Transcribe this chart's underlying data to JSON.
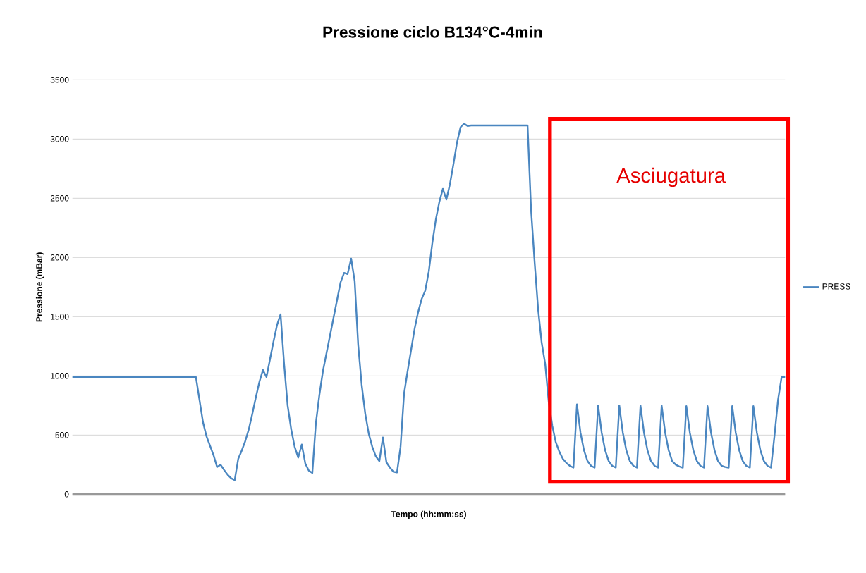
{
  "chart_data": {
    "type": "line",
    "title": "Pressione ciclo B134°C-4min",
    "xlabel": "Tempo (hh:mm:ss)",
    "ylabel": "Pressione (mBar)",
    "categories": [
      null,
      null,
      null,
      null,
      null,
      null,
      null,
      null,
      null,
      null,
      null,
      null,
      null,
      null,
      null,
      null,
      null,
      null,
      null,
      null,
      null,
      null,
      null,
      null,
      null,
      null,
      null,
      null,
      null,
      null,
      null,
      null,
      null,
      null,
      null,
      null,
      null,
      null,
      null,
      null,
      null,
      null,
      null,
      null,
      null,
      null,
      null,
      null,
      null,
      null,
      null,
      null,
      null,
      null,
      null,
      null,
      null,
      null,
      null,
      null,
      null,
      null,
      null,
      null,
      null,
      null,
      null,
      null,
      null,
      null,
      null,
      null,
      null,
      null,
      null,
      null,
      null,
      null,
      null,
      null,
      null,
      null,
      null,
      null,
      null,
      null,
      null,
      null,
      null,
      null,
      null,
      null,
      null,
      null,
      null,
      null,
      null,
      null,
      null,
      null,
      null,
      null,
      null,
      null,
      null,
      null,
      null,
      null,
      null,
      null,
      null,
      null,
      null,
      null,
      null,
      null,
      null,
      null,
      null,
      null,
      null,
      null,
      null,
      null,
      null,
      null,
      null,
      null,
      null,
      null,
      null,
      null,
      null,
      null,
      null,
      null,
      null,
      null,
      null,
      null,
      null,
      null,
      null,
      null,
      null,
      null,
      null,
      null,
      null,
      null,
      null,
      null,
      null,
      null,
      null,
      null,
      null,
      null,
      null,
      null,
      null,
      null,
      null,
      null,
      null,
      null,
      null,
      null,
      null,
      null,
      null,
      null,
      null,
      null,
      null,
      null,
      null,
      null,
      null,
      null,
      null,
      null,
      null,
      null,
      null,
      null,
      null,
      null,
      null,
      null,
      null,
      null,
      null,
      null,
      null,
      null,
      null,
      null,
      null,
      null,
      null,
      null,
      null
    ],
    "series": [
      {
        "name": "PRESS",
        "color": "#4a86c0",
        "values": [
          990,
          990,
          990,
          990,
          990,
          990,
          990,
          990,
          990,
          990,
          990,
          990,
          990,
          990,
          990,
          990,
          990,
          990,
          990,
          990,
          990,
          990,
          990,
          990,
          990,
          990,
          990,
          990,
          990,
          990,
          990,
          990,
          990,
          990,
          990,
          990,
          800,
          610,
          490,
          410,
          330,
          230,
          250,
          205,
          165,
          135,
          120,
          300,
          370,
          450,
          550,
          680,
          820,
          950,
          1050,
          990,
          1140,
          1290,
          1430,
          1520,
          1100,
          750,
          550,
          400,
          310,
          420,
          260,
          200,
          180,
          600,
          840,
          1040,
          1190,
          1340,
          1490,
          1640,
          1790,
          1870,
          1860,
          1990,
          1800,
          1260,
          920,
          680,
          510,
          400,
          320,
          280,
          480,
          270,
          225,
          190,
          185,
          400,
          850,
          1040,
          1220,
          1400,
          1540,
          1650,
          1720,
          1880,
          2120,
          2320,
          2470,
          2580,
          2490,
          2620,
          2790,
          2970,
          3100,
          3130,
          3110,
          3115,
          3115,
          3115,
          3115,
          3115,
          3115,
          3115,
          3115,
          3115,
          3115,
          3115,
          3115,
          3115,
          3115,
          3115,
          3115,
          3115,
          2400,
          1960,
          1560,
          1280,
          1100,
          780,
          580,
          440,
          360,
          300,
          265,
          240,
          225,
          760,
          520,
          370,
          280,
          240,
          225,
          750,
          520,
          370,
          280,
          240,
          225,
          750,
          520,
          370,
          280,
          240,
          225,
          750,
          520,
          370,
          280,
          240,
          225,
          750,
          520,
          370,
          280,
          250,
          235,
          225,
          745,
          520,
          370,
          280,
          240,
          225,
          745,
          520,
          370,
          280,
          240,
          230,
          225,
          745,
          520,
          370,
          280,
          240,
          225,
          745,
          520,
          370,
          280,
          240,
          225,
          500,
          800,
          990,
          990
        ]
      }
    ],
    "ylim": [
      0,
      3500
    ],
    "yticks": [
      0,
      500,
      1000,
      1500,
      2000,
      2500,
      3000,
      3500
    ],
    "tick_labels": "y",
    "grid": "y",
    "legend": "right",
    "marker": "none",
    "line_style": "solid",
    "annotations": [
      "Asciugatura"
    ]
  }
}
